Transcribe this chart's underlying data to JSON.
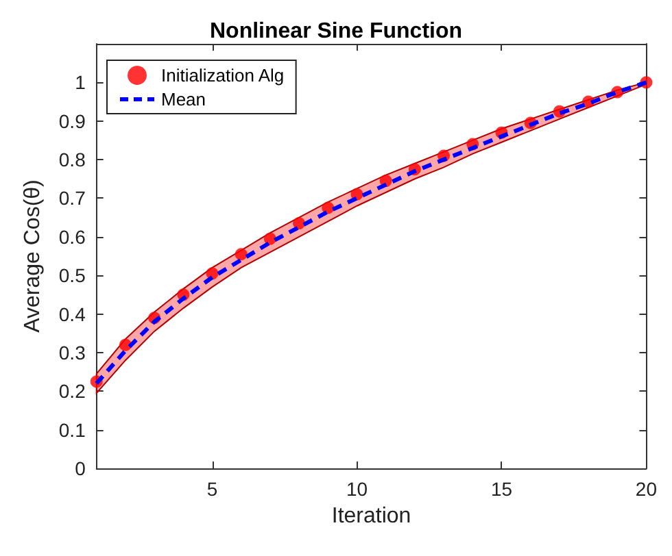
{
  "chart_data": {
    "type": "line",
    "title": "Nonlinear Sine Function",
    "xlabel": "Iteration",
    "ylabel": "Average Cos(θ)",
    "x": [
      1,
      2,
      3,
      4,
      5,
      6,
      7,
      8,
      9,
      10,
      11,
      12,
      13,
      14,
      15,
      16,
      17,
      18,
      19,
      20
    ],
    "series": [
      {
        "name": "Initialization Alg",
        "type": "scatter",
        "color": "#ff0000",
        "marker": "circle",
        "values": [
          0.225,
          0.32,
          0.39,
          0.45,
          0.505,
          0.555,
          0.595,
          0.635,
          0.675,
          0.71,
          0.745,
          0.775,
          0.81,
          0.84,
          0.87,
          0.895,
          0.925,
          0.95,
          0.975,
          1.0
        ],
        "lower": [
          0.195,
          0.28,
          0.355,
          0.415,
          0.47,
          0.52,
          0.56,
          0.6,
          0.64,
          0.68,
          0.715,
          0.75,
          0.78,
          0.815,
          0.845,
          0.875,
          0.905,
          0.935,
          0.965,
          0.995
        ],
        "upper": [
          0.245,
          0.335,
          0.405,
          0.465,
          0.52,
          0.565,
          0.61,
          0.65,
          0.69,
          0.725,
          0.76,
          0.79,
          0.82,
          0.85,
          0.88,
          0.905,
          0.93,
          0.955,
          0.98,
          1.0
        ]
      },
      {
        "name": "Mean",
        "type": "line",
        "color": "#0000ff",
        "line_style": "dashed",
        "marker": "none",
        "values": [
          0.22,
          0.305,
          0.38,
          0.44,
          0.495,
          0.54,
          0.585,
          0.625,
          0.665,
          0.7,
          0.735,
          0.77,
          0.8,
          0.83,
          0.86,
          0.89,
          0.92,
          0.945,
          0.975,
          1.0
        ]
      }
    ],
    "xlim": [
      1,
      20
    ],
    "xticks": [
      5,
      10,
      15,
      20
    ],
    "ylim": [
      0,
      1.1
    ],
    "yticks": [
      0,
      0.1,
      0.2,
      0.3,
      0.4,
      0.5,
      0.6,
      0.7,
      0.8,
      0.9,
      1
    ],
    "grid": false,
    "legend": "top left"
  }
}
